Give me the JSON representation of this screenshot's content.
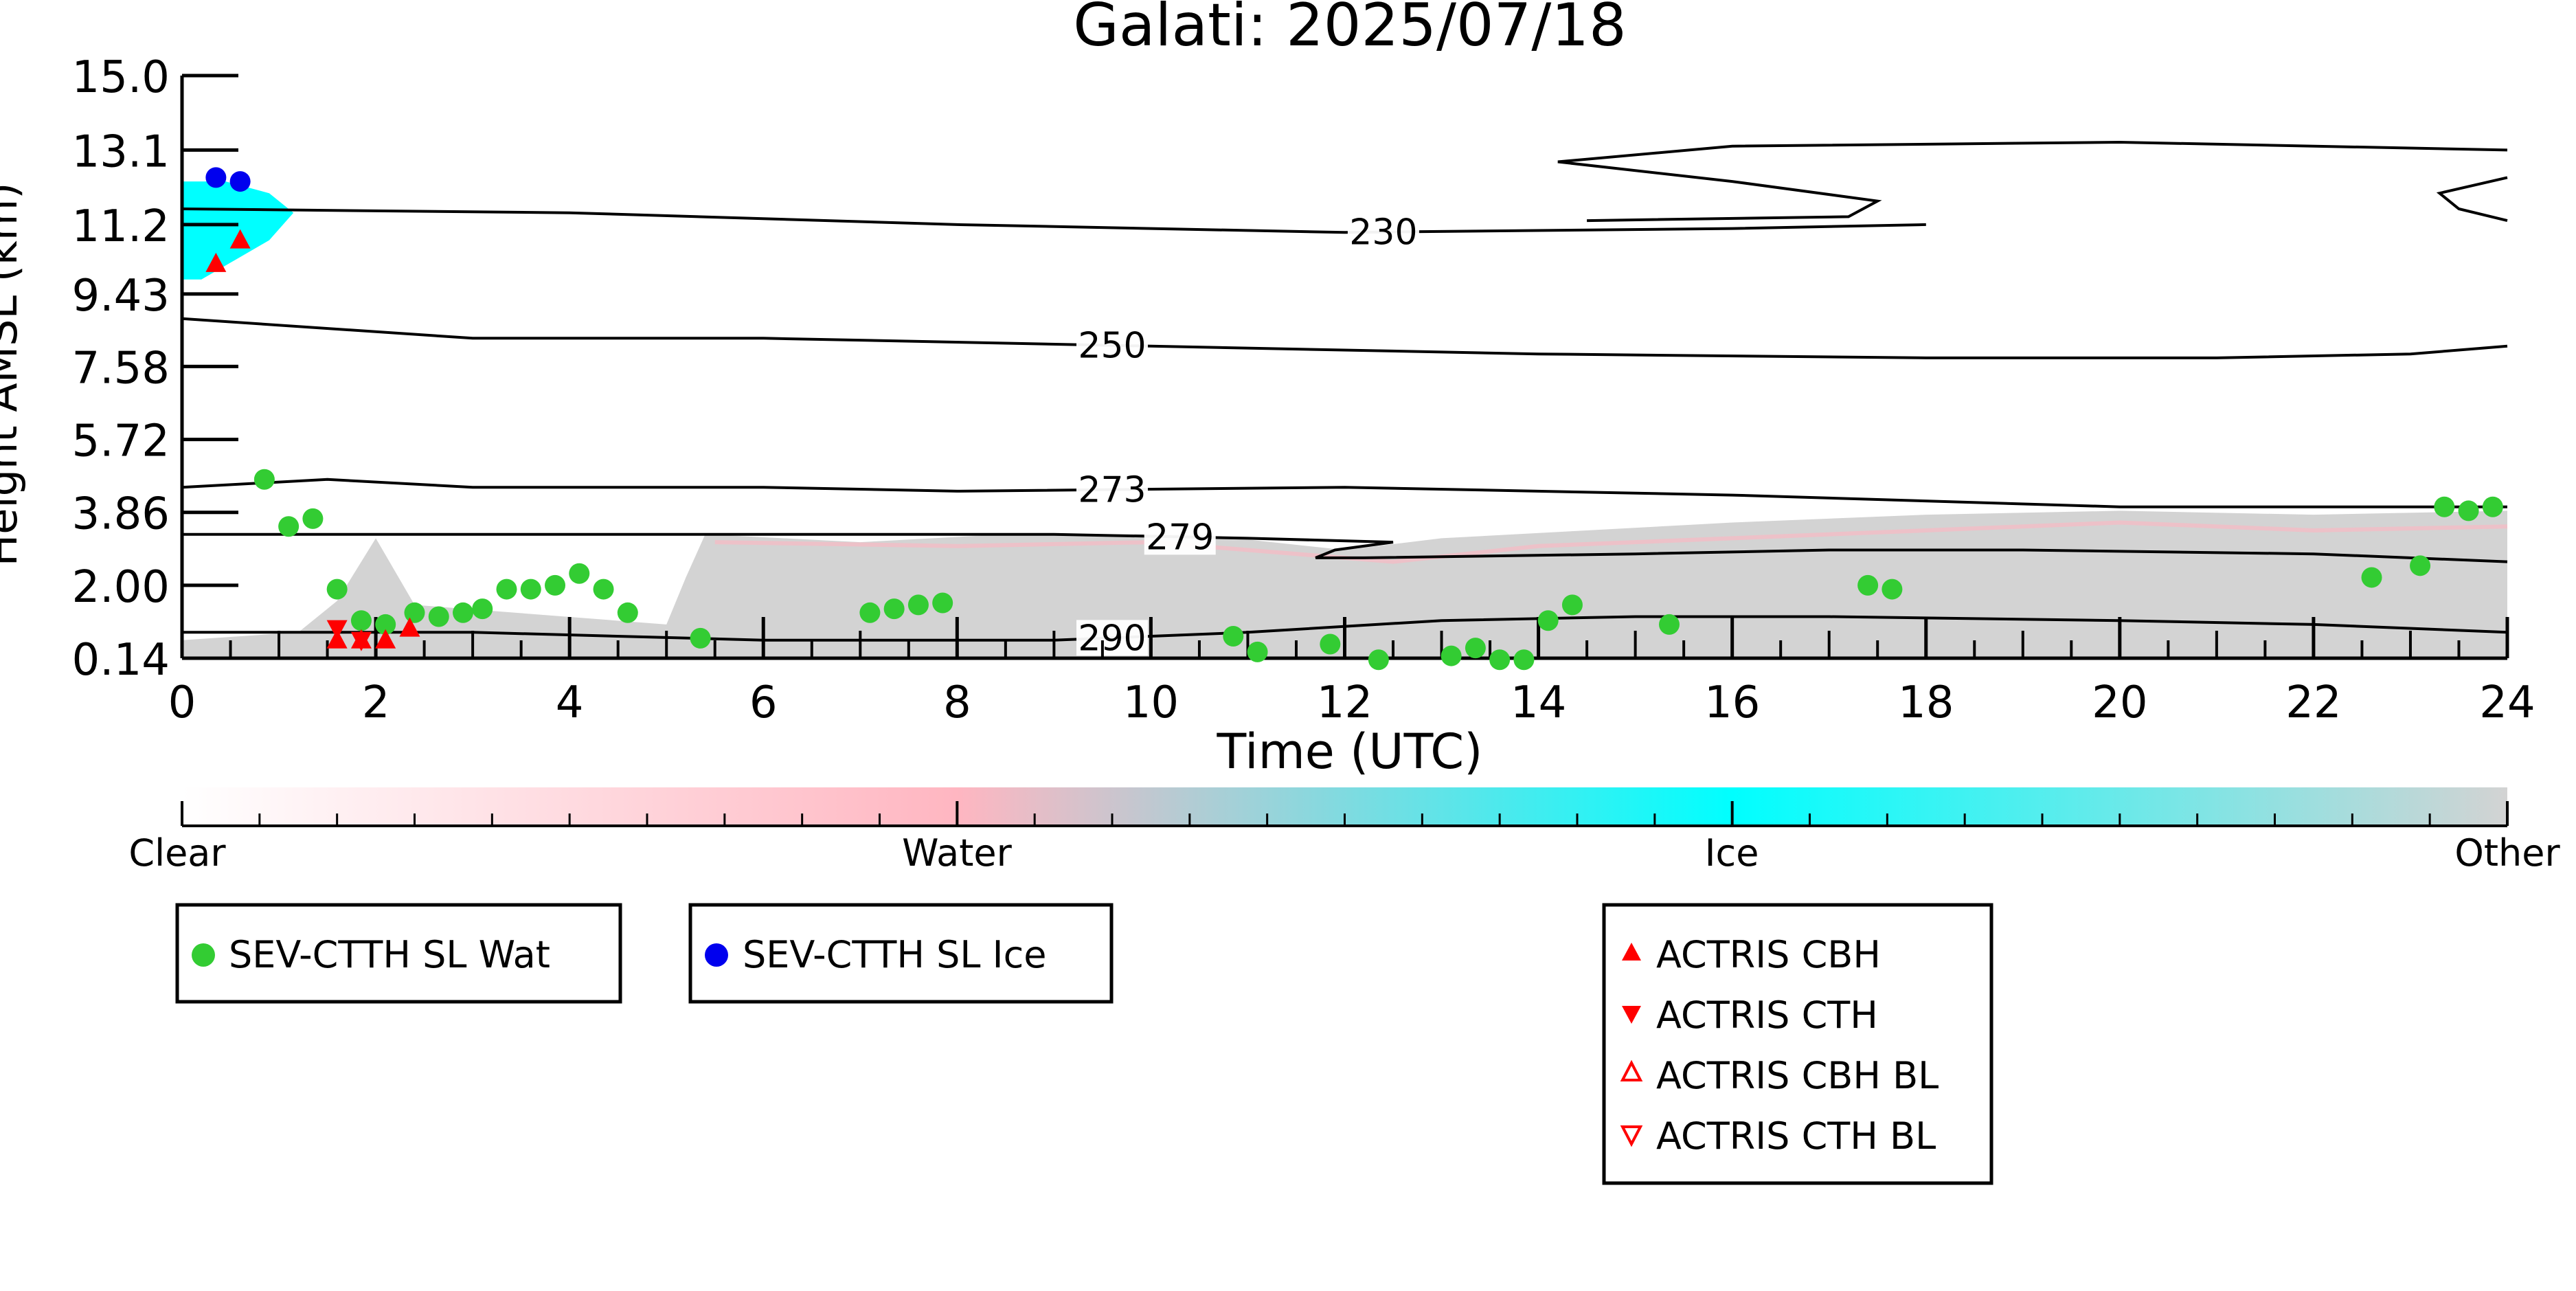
{
  "chart_data": {
    "type": "scatter",
    "title": "Galati: 2025/07/18",
    "xlabel": "Time (UTC)",
    "ylabel": "Height AMSL (km)",
    "xlim": [
      0,
      24
    ],
    "ylim": [
      0.14,
      15.0
    ],
    "x_ticks": [
      "0",
      "2",
      "4",
      "6",
      "8",
      "10",
      "12",
      "14",
      "16",
      "18",
      "20",
      "22",
      "24"
    ],
    "y_ticks": [
      "0.14",
      "2.00",
      "3.86",
      "5.72",
      "7.58",
      "9.43",
      "11.2",
      "13.1",
      "15.0"
    ],
    "y_tick_values": [
      0.14,
      2.0,
      3.86,
      5.72,
      7.58,
      9.43,
      11.2,
      13.1,
      15.0
    ],
    "grid": false,
    "background_classification": {
      "description_colorbar": [
        "Clear",
        "Water",
        "Ice",
        "Other"
      ],
      "colors": {
        "clear": "#ffffff",
        "water": "#ffb6c1",
        "ice": "#00ffff",
        "other": "#d3d3d3"
      },
      "ice_region": {
        "x_range": [
          0,
          1.2
        ],
        "y_range": [
          9.8,
          12.3
        ]
      },
      "other_region": {
        "x_range": [
          0,
          24
        ],
        "y_range": [
          0.14,
          4.0
        ]
      }
    },
    "contours": [
      {
        "label": "230",
        "label_x": 12.4,
        "points": [
          [
            0,
            11.6
          ],
          [
            4,
            11.5
          ],
          [
            8,
            11.2
          ],
          [
            12,
            11.0
          ],
          [
            16,
            11.1
          ],
          [
            18,
            11.2
          ]
        ]
      },
      {
        "label": "230",
        "label_x": null,
        "points": [
          [
            14.2,
            12.8
          ],
          [
            16,
            12.3
          ],
          [
            17.5,
            11.8
          ],
          [
            17.2,
            11.4
          ],
          [
            14.5,
            11.3
          ]
        ]
      },
      {
        "label": "230",
        "label_x": null,
        "points": [
          [
            14.2,
            12.8
          ],
          [
            16,
            13.2
          ],
          [
            20,
            13.3
          ],
          [
            24,
            13.1
          ]
        ]
      },
      {
        "label": "",
        "label_x": null,
        "points": [
          [
            24,
            12.4
          ],
          [
            23.3,
            12.0
          ],
          [
            23.5,
            11.6
          ],
          [
            24,
            11.3
          ]
        ]
      },
      {
        "label": "250",
        "label_x": 9.6,
        "points": [
          [
            0,
            8.8
          ],
          [
            3,
            8.3
          ],
          [
            6,
            8.3
          ],
          [
            10,
            8.1
          ],
          [
            14,
            7.9
          ],
          [
            18,
            7.8
          ],
          [
            21,
            7.8
          ],
          [
            23,
            7.9
          ],
          [
            24,
            8.1
          ]
        ]
      },
      {
        "label": "273",
        "label_x": 9.6,
        "points": [
          [
            0,
            4.5
          ],
          [
            1.5,
            4.7
          ],
          [
            3,
            4.5
          ],
          [
            6,
            4.5
          ],
          [
            8,
            4.4
          ],
          [
            12,
            4.5
          ],
          [
            16,
            4.3
          ],
          [
            20,
            4.0
          ],
          [
            24,
            4.0
          ]
        ]
      },
      {
        "label": "279",
        "label_x": 10.3,
        "points": [
          [
            0,
            3.3
          ],
          [
            3,
            3.3
          ],
          [
            6,
            3.3
          ],
          [
            9,
            3.3
          ],
          [
            11,
            3.2
          ],
          [
            12.5,
            3.1
          ],
          [
            11.9,
            2.9
          ],
          [
            11.7,
            2.7
          ],
          [
            12.2,
            2.7
          ],
          [
            15,
            2.8
          ],
          [
            17,
            2.9
          ],
          [
            19,
            2.9
          ],
          [
            22,
            2.8
          ],
          [
            24,
            2.6
          ]
        ]
      },
      {
        "label": "290",
        "label_x": 9.6,
        "points": [
          [
            0,
            0.8
          ],
          [
            3,
            0.8
          ],
          [
            6,
            0.6
          ],
          [
            9,
            0.6
          ],
          [
            11,
            0.8
          ],
          [
            13,
            1.1
          ],
          [
            15,
            1.2
          ],
          [
            17,
            1.2
          ],
          [
            20,
            1.1
          ],
          [
            22,
            1.0
          ],
          [
            24,
            0.8
          ]
        ]
      }
    ],
    "series": [
      {
        "name": "SEV-CTTH SL Wat",
        "marker": "circle",
        "color": "#33cc33",
        "points": [
          [
            0.85,
            4.7
          ],
          [
            1.1,
            3.5
          ],
          [
            1.35,
            3.7
          ],
          [
            1.6,
            1.9
          ],
          [
            1.85,
            1.1
          ],
          [
            2.1,
            1.0
          ],
          [
            2.4,
            1.3
          ],
          [
            2.65,
            1.2
          ],
          [
            2.9,
            1.3
          ],
          [
            3.1,
            1.4
          ],
          [
            3.35,
            1.9
          ],
          [
            3.6,
            1.9
          ],
          [
            3.85,
            2.0
          ],
          [
            4.1,
            2.3
          ],
          [
            4.35,
            1.9
          ],
          [
            4.6,
            1.3
          ],
          [
            5.35,
            0.65
          ],
          [
            7.1,
            1.3
          ],
          [
            7.35,
            1.4
          ],
          [
            7.6,
            1.5
          ],
          [
            7.85,
            1.55
          ],
          [
            10.85,
            0.7
          ],
          [
            11.1,
            0.3
          ],
          [
            11.85,
            0.5
          ],
          [
            12.35,
            0.1
          ],
          [
            13.1,
            0.2
          ],
          [
            13.35,
            0.4
          ],
          [
            13.6,
            0.1
          ],
          [
            13.85,
            0.1
          ],
          [
            14.1,
            1.1
          ],
          [
            14.35,
            1.5
          ],
          [
            15.35,
            1.0
          ],
          [
            17.4,
            2.0
          ],
          [
            17.65,
            1.9
          ],
          [
            22.6,
            2.2
          ],
          [
            23.1,
            2.5
          ],
          [
            23.35,
            4.0
          ],
          [
            23.6,
            3.9
          ],
          [
            23.85,
            4.0
          ]
        ]
      },
      {
        "name": "SEV-CTTH SL Ice",
        "marker": "circle",
        "color": "#0000ee",
        "points": [
          [
            0.35,
            12.4
          ],
          [
            0.6,
            12.3
          ]
        ]
      },
      {
        "name": "ACTRIS CBH",
        "marker": "triangle-up",
        "color": "#ff0000",
        "points": [
          [
            0.35,
            10.2
          ],
          [
            0.6,
            10.8
          ],
          [
            1.6,
            0.6
          ],
          [
            1.85,
            0.6
          ],
          [
            2.1,
            0.6
          ],
          [
            2.35,
            0.9
          ]
        ]
      },
      {
        "name": "ACTRIS CTH",
        "marker": "triangle-down",
        "color": "#ff0000",
        "points": [
          [
            1.6,
            0.9
          ],
          [
            1.85,
            0.6
          ]
        ]
      },
      {
        "name": "ACTRIS CBH BL",
        "marker": "triangle-up-open",
        "color": "#ff0000",
        "points": []
      },
      {
        "name": "ACTRIS CTH BL",
        "marker": "triangle-down-open",
        "color": "#ff0000",
        "points": []
      }
    ],
    "colorbar": {
      "labels": [
        "Clear",
        "Water",
        "Ice",
        "Other"
      ],
      "stops": [
        "#ffffff",
        "#ffb6c1",
        "#00ffff",
        "#d3d3d3"
      ]
    },
    "legends": {
      "satellite": [
        "SEV-CTTH SL Wat",
        "SEV-CTTH SL Ice"
      ],
      "actris": [
        "ACTRIS CBH",
        "ACTRIS CTH",
        "ACTRIS CBH BL",
        "ACTRIS CTH BL"
      ]
    }
  }
}
